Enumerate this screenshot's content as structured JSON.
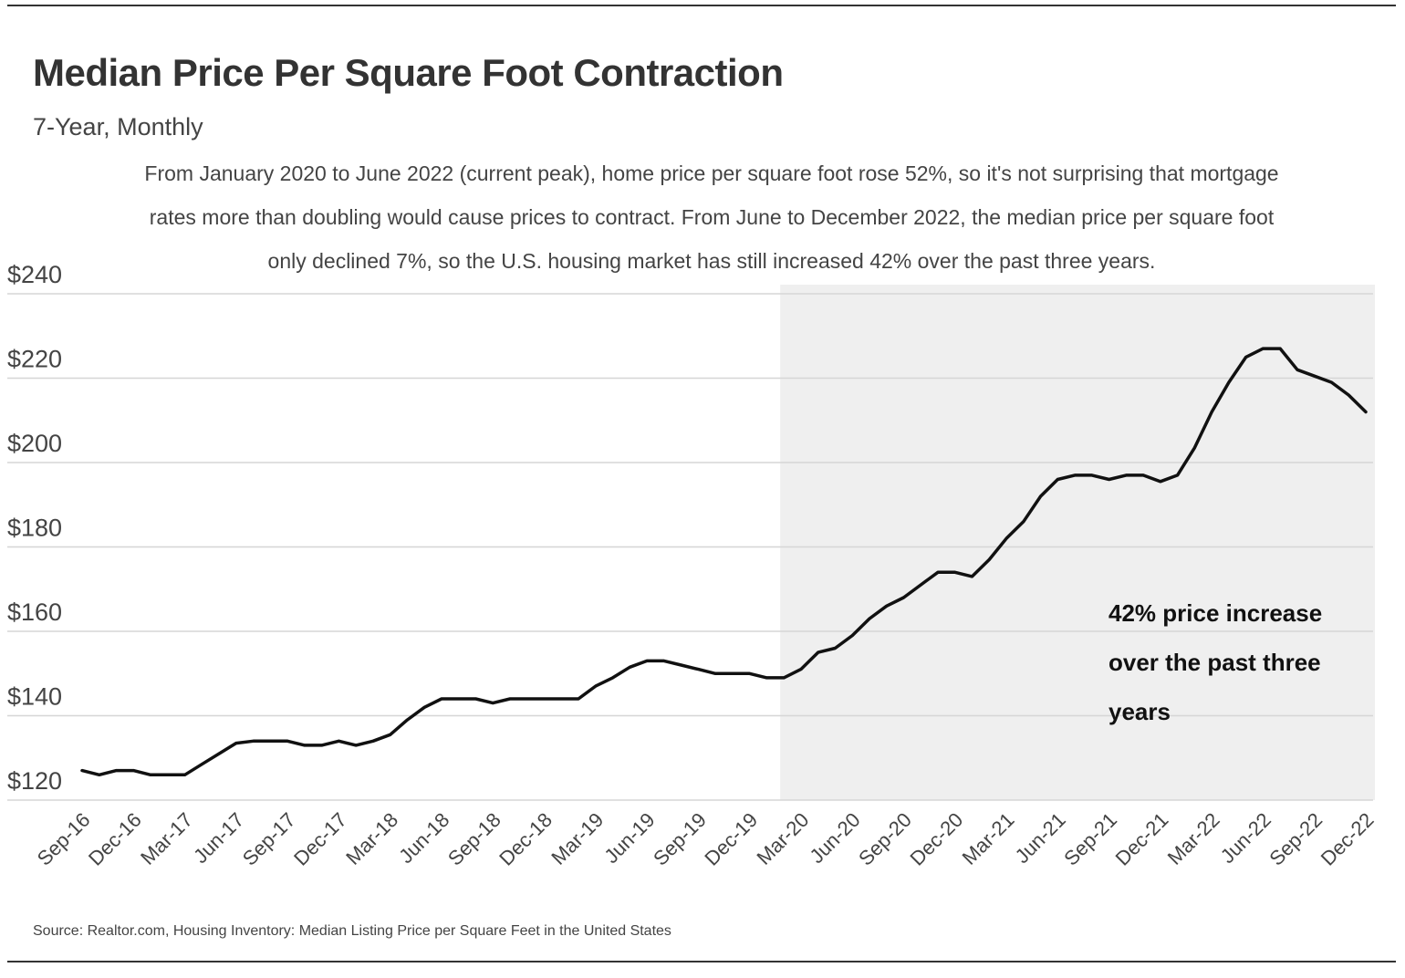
{
  "chart_data": {
    "type": "line",
    "title": "Median Price Per Square Foot Contraction",
    "subtitle": "7-Year, Monthly",
    "description": "From January 2020 to June 2022 (current peak), home price per square foot rose 52%, so it's not surprising that mortgage rates more than doubling would cause prices to contract. From June to December 2022, the median price per square foot only declined 7%, so the U.S. housing market has still increased 42% over the past three years.",
    "annotation": "42% price increase over the past three years",
    "source": "Source:  Realtor.com, Housing Inventory: Median Listing Price per Square Feet in the United States",
    "categories": [
      "Sep-16",
      null,
      null,
      "Dec-16",
      null,
      null,
      "Mar-17",
      null,
      null,
      "Jun-17",
      null,
      null,
      "Sep-17",
      null,
      null,
      "Dec-17",
      null,
      null,
      "Mar-18",
      null,
      null,
      "Jun-18",
      null,
      null,
      "Sep-18",
      null,
      null,
      "Dec-18",
      null,
      null,
      "Mar-19",
      null,
      null,
      "Jun-19",
      null,
      null,
      "Sep-19",
      null,
      null,
      "Dec-19",
      null,
      null,
      "Mar-20",
      null,
      null,
      "Jun-20",
      null,
      null,
      "Sep-20",
      null,
      null,
      "Dec-20",
      null,
      null,
      "Mar-21",
      null,
      null,
      "Jun-21",
      null,
      null,
      "Sep-21",
      null,
      null,
      "Dec-21",
      null,
      null,
      "Mar-22",
      null,
      null,
      "Jun-22",
      null,
      null,
      "Sep-22",
      null,
      null,
      "Dec-22"
    ],
    "values": [
      127,
      126,
      127,
      127,
      126,
      126,
      126,
      128.5,
      131,
      133.5,
      134,
      134,
      134,
      133,
      133,
      134,
      133,
      134,
      135.5,
      139,
      142,
      144,
      144,
      144,
      143,
      144,
      144,
      144,
      144,
      144,
      147,
      149,
      151.5,
      153,
      153,
      152,
      151,
      150,
      150,
      150,
      149,
      149,
      151,
      155,
      156,
      159,
      163,
      166,
      168,
      171,
      174,
      174,
      173,
      177,
      182,
      186,
      192,
      196,
      197,
      197,
      196,
      197,
      197,
      195.5,
      197,
      203.5,
      212,
      219,
      225,
      227,
      227,
      222,
      220.5,
      219,
      216,
      212
    ],
    "color": "#111111",
    "ylim": [
      120,
      240
    ],
    "yticks": [
      {
        "value": 120,
        "label": "$120"
      },
      {
        "value": 140,
        "label": "$140"
      },
      {
        "value": 160,
        "label": "$160"
      },
      {
        "value": 180,
        "label": "$180"
      },
      {
        "value": 200,
        "label": "$200"
      },
      {
        "value": 220,
        "label": "$220"
      },
      {
        "value": 240,
        "label": "$240"
      }
    ],
    "grid": true
  }
}
